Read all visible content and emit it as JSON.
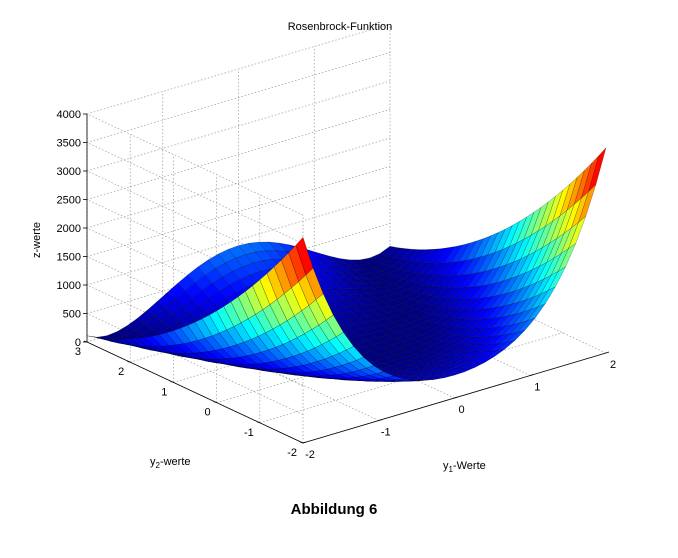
{
  "chart_data": {
    "type": "surface",
    "title": "Rosenbrock-Funktion",
    "function": "z = 100*(y2 - y1^2)^2 + (1 - y1)^2",
    "x": {
      "label_main": "y",
      "label_sub": "1",
      "label_rest": "-Werte",
      "range": [
        -2,
        2
      ],
      "ticks": [
        "-2",
        "-1",
        "0",
        "1",
        "2"
      ]
    },
    "y": {
      "label_main": "y",
      "label_sub": "2",
      "label_rest": "-werte",
      "range": [
        -2,
        3
      ],
      "ticks": [
        "-2",
        "-1",
        "0",
        "1",
        "2",
        "3"
      ]
    },
    "z": {
      "label": "z-werte",
      "range": [
        0,
        4000
      ],
      "ticks": [
        "0",
        "500",
        "1000",
        "1500",
        "2000",
        "2500",
        "3000",
        "3500",
        "4000"
      ]
    },
    "grid": true,
    "colormap": "jet"
  },
  "caption": "Abbildung 6"
}
